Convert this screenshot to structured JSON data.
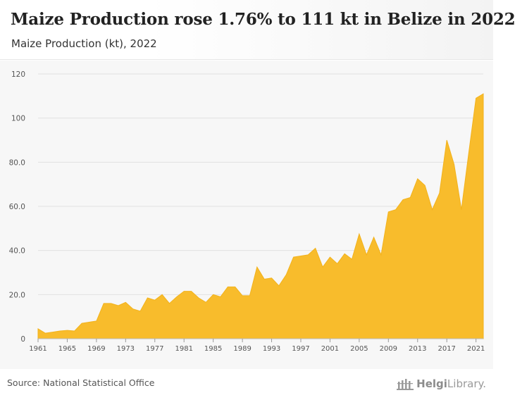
{
  "header": {
    "title": "Maize Production rose 1.76% to 111 kt in Belize in 2022",
    "subtitle": "Maize Production (kt), 2022"
  },
  "footer": {
    "source": "Source: National Statistical Office",
    "brand_prefix": "Helgi",
    "brand_suffix": "Library."
  },
  "colors": {
    "area_fill": "#f8bc2c",
    "area_stroke": "#f2b21c",
    "grid": "#e2e2e2",
    "tick_text": "#555555"
  },
  "chart_data": {
    "type": "area",
    "title": "Maize Production rose 1.76% to 111 kt in Belize in 2022",
    "subtitle": "Maize Production (kt), 2022",
    "xlabel": "",
    "ylabel": "",
    "ylim": [
      0,
      120
    ],
    "xlim": [
      1961,
      2022
    ],
    "grid": true,
    "legend": "none",
    "y_ticks": [
      0,
      20,
      40,
      60,
      80,
      100,
      120
    ],
    "y_tick_labels": [
      "0",
      "20.0",
      "40.0",
      "60.0",
      "80.0",
      "100",
      "120"
    ],
    "x_ticks": [
      1961,
      1965,
      1969,
      1973,
      1977,
      1981,
      1985,
      1989,
      1993,
      1997,
      2001,
      2005,
      2009,
      2013,
      2017,
      2021
    ],
    "x": [
      1961,
      1962,
      1963,
      1964,
      1965,
      1966,
      1967,
      1968,
      1969,
      1970,
      1971,
      1972,
      1973,
      1974,
      1975,
      1976,
      1977,
      1978,
      1979,
      1980,
      1981,
      1982,
      1983,
      1984,
      1985,
      1986,
      1987,
      1988,
      1989,
      1990,
      1991,
      1992,
      1993,
      1994,
      1995,
      1996,
      1997,
      1998,
      1999,
      2000,
      2001,
      2002,
      2003,
      2004,
      2005,
      2006,
      2007,
      2008,
      2009,
      2010,
      2011,
      2012,
      2013,
      2014,
      2015,
      2016,
      2017,
      2018,
      2019,
      2020,
      2021,
      2022
    ],
    "series": [
      {
        "values": [
          4.5,
          2.5,
          3,
          3.5,
          3.8,
          3.5,
          7,
          7.5,
          8,
          16,
          16,
          15,
          16.5,
          13.5,
          12.5,
          18.5,
          17.5,
          20,
          16,
          19,
          21.5,
          21.5,
          18.5,
          16.5,
          20,
          19,
          23.5,
          23.5,
          19.5,
          19.5,
          32.5,
          27,
          27.5,
          24,
          29,
          37,
          37.5,
          38,
          41,
          32.5,
          37,
          34,
          38.5,
          36,
          47.5,
          38,
          46,
          38,
          57.5,
          58.5,
          63,
          64,
          72.5,
          69.5,
          58.5,
          66,
          90,
          79,
          58.5,
          84,
          109,
          111
        ]
      }
    ]
  }
}
